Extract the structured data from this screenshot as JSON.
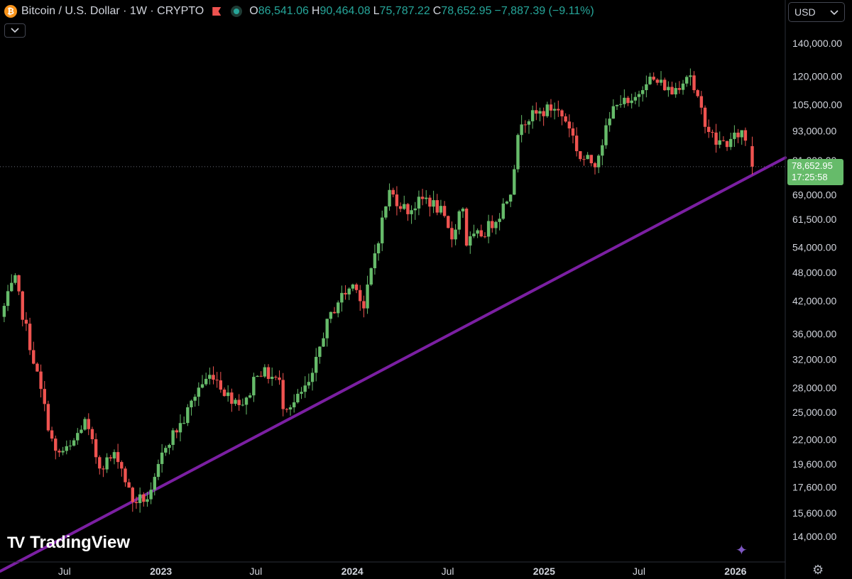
{
  "header": {
    "coin_glyph": "₿",
    "title": "Bitcoin / U.S. Dollar · 1W · CRYPTO",
    "ohlc": [
      {
        "label": "O",
        "value": "86,541.06"
      },
      {
        "label": "H",
        "value": "90,464.08"
      },
      {
        "label": "L",
        "value": "75,787.22"
      },
      {
        "label": "C",
        "value": "78,652.95"
      }
    ],
    "change": "−7,887.39 (−9.11%)",
    "icons": {
      "flag": "flag-icon",
      "status": "market-status-icon",
      "collapse": "chevron-down-icon"
    }
  },
  "currency": {
    "label": "USD",
    "icon": "chevron-down-icon"
  },
  "price_label": {
    "price": "78,652.95",
    "countdown": "17:25:58"
  },
  "branding": {
    "logo_mark": "TV",
    "name": "TradingView"
  },
  "footer_icons": {
    "spark": "sparkle-icon",
    "settings": "gear-icon"
  },
  "colors": {
    "up": "#66bb6a",
    "down": "#ef5350",
    "trendline": "#7b1fa2",
    "background": "#000000",
    "axis_text": "#d1d4dc",
    "change": "#26a69a"
  },
  "chart_data": {
    "type": "candlestick",
    "scale": "log",
    "interval": "1W",
    "ylim": [
      12500,
      150000
    ],
    "y_ticks": [
      {
        "value": 140000,
        "label": "140,000.00"
      },
      {
        "value": 120000,
        "label": "120,000.00"
      },
      {
        "value": 105000,
        "label": "105,000.00"
      },
      {
        "value": 93000,
        "label": "93,000.00"
      },
      {
        "value": 81000,
        "label": "81,000.00"
      },
      {
        "value": 69000,
        "label": "69,000.00"
      },
      {
        "value": 61500,
        "label": "61,500.00"
      },
      {
        "value": 54000,
        "label": "54,000.00"
      },
      {
        "value": 48000,
        "label": "48,000.00"
      },
      {
        "value": 42000,
        "label": "42,000.00"
      },
      {
        "value": 36000,
        "label": "36,000.00"
      },
      {
        "value": 32000,
        "label": "32,000.00"
      },
      {
        "value": 28000,
        "label": "28,000.00"
      },
      {
        "value": 25000,
        "label": "25,000.00"
      },
      {
        "value": 22000,
        "label": "22,000.00"
      },
      {
        "value": 19600,
        "label": "19,600.00"
      },
      {
        "value": 17600,
        "label": "17,600.00"
      },
      {
        "value": 15600,
        "label": "15,600.00"
      },
      {
        "value": 14000,
        "label": "14,000.00"
      }
    ],
    "x_ticks": [
      {
        "date": "2022-07-01",
        "label": "Jul",
        "bold": false
      },
      {
        "date": "2023-01-01",
        "label": "2023",
        "bold": true
      },
      {
        "date": "2023-07-01",
        "label": "Jul",
        "bold": false
      },
      {
        "date": "2024-01-01",
        "label": "2024",
        "bold": true
      },
      {
        "date": "2024-07-01",
        "label": "Jul",
        "bold": false
      },
      {
        "date": "2025-01-01",
        "label": "2025",
        "bold": true
      },
      {
        "date": "2025-07-01",
        "label": "Jul",
        "bold": false
      },
      {
        "date": "2026-01-01",
        "label": "2026",
        "bold": true
      }
    ],
    "xlim": [
      "2022-02-28",
      "2026-04-06"
    ],
    "current_price": 78652.95,
    "trendline": {
      "color": "#7b1fa2",
      "points": [
        {
          "date": "2022-03-01",
          "price": 11900
        },
        {
          "date": "2026-04-06",
          "price": 82000
        }
      ]
    },
    "price_path": [
      {
        "date": "2022-03-01",
        "price": 39000
      },
      {
        "date": "2022-03-28",
        "price": 46500
      },
      {
        "date": "2022-04-11",
        "price": 40000
      },
      {
        "date": "2022-05-09",
        "price": 30000
      },
      {
        "date": "2022-06-13",
        "price": 20500
      },
      {
        "date": "2022-07-11",
        "price": 21000
      },
      {
        "date": "2022-08-08",
        "price": 24000
      },
      {
        "date": "2022-09-05",
        "price": 19500
      },
      {
        "date": "2022-10-10",
        "price": 20500
      },
      {
        "date": "2022-11-07",
        "price": 16500
      },
      {
        "date": "2022-12-12",
        "price": 16800
      },
      {
        "date": "2023-01-09",
        "price": 21500
      },
      {
        "date": "2023-02-13",
        "price": 24000
      },
      {
        "date": "2023-03-13",
        "price": 28000
      },
      {
        "date": "2023-04-10",
        "price": 30000
      },
      {
        "date": "2023-05-08",
        "price": 27000
      },
      {
        "date": "2023-06-12",
        "price": 26000
      },
      {
        "date": "2023-07-03",
        "price": 30500
      },
      {
        "date": "2023-08-14",
        "price": 29000
      },
      {
        "date": "2023-08-21",
        "price": 26000
      },
      {
        "date": "2023-09-11",
        "price": 26000
      },
      {
        "date": "2023-10-16",
        "price": 29000
      },
      {
        "date": "2023-11-06",
        "price": 36000
      },
      {
        "date": "2023-12-04",
        "price": 42000
      },
      {
        "date": "2024-01-08",
        "price": 46000
      },
      {
        "date": "2024-01-22",
        "price": 40000
      },
      {
        "date": "2024-02-12",
        "price": 52000
      },
      {
        "date": "2024-03-11",
        "price": 70000
      },
      {
        "date": "2024-04-15",
        "price": 64000
      },
      {
        "date": "2024-05-20",
        "price": 68000
      },
      {
        "date": "2024-06-17",
        "price": 64000
      },
      {
        "date": "2024-07-08",
        "price": 56000
      },
      {
        "date": "2024-07-29",
        "price": 67000
      },
      {
        "date": "2024-08-05",
        "price": 55000
      },
      {
        "date": "2024-09-09",
        "price": 58000
      },
      {
        "date": "2024-10-07",
        "price": 63000
      },
      {
        "date": "2024-10-28",
        "price": 70000
      },
      {
        "date": "2024-11-18",
        "price": 98000
      },
      {
        "date": "2024-12-16",
        "price": 100000
      },
      {
        "date": "2025-01-20",
        "price": 104000
      },
      {
        "date": "2025-02-17",
        "price": 96000
      },
      {
        "date": "2025-03-10",
        "price": 82000
      },
      {
        "date": "2025-04-07",
        "price": 80000
      },
      {
        "date": "2025-05-05",
        "price": 97000
      },
      {
        "date": "2025-05-19",
        "price": 108000
      },
      {
        "date": "2025-06-16",
        "price": 104000
      },
      {
        "date": "2025-07-14",
        "price": 119000
      },
      {
        "date": "2025-08-18",
        "price": 115000
      },
      {
        "date": "2025-09-01",
        "price": 111000
      },
      {
        "date": "2025-10-06",
        "price": 123000
      },
      {
        "date": "2025-10-13",
        "price": 112000
      },
      {
        "date": "2025-11-10",
        "price": 94000
      },
      {
        "date": "2025-11-24",
        "price": 88000
      },
      {
        "date": "2025-12-22",
        "price": 88000
      },
      {
        "date": "2026-01-12",
        "price": 93000
      },
      {
        "date": "2026-01-26",
        "price": 86541
      }
    ],
    "last_candle": {
      "date": "2026-02-02",
      "open": 86541.06,
      "high": 90464.08,
      "low": 75787.22,
      "close": 78652.95
    }
  }
}
